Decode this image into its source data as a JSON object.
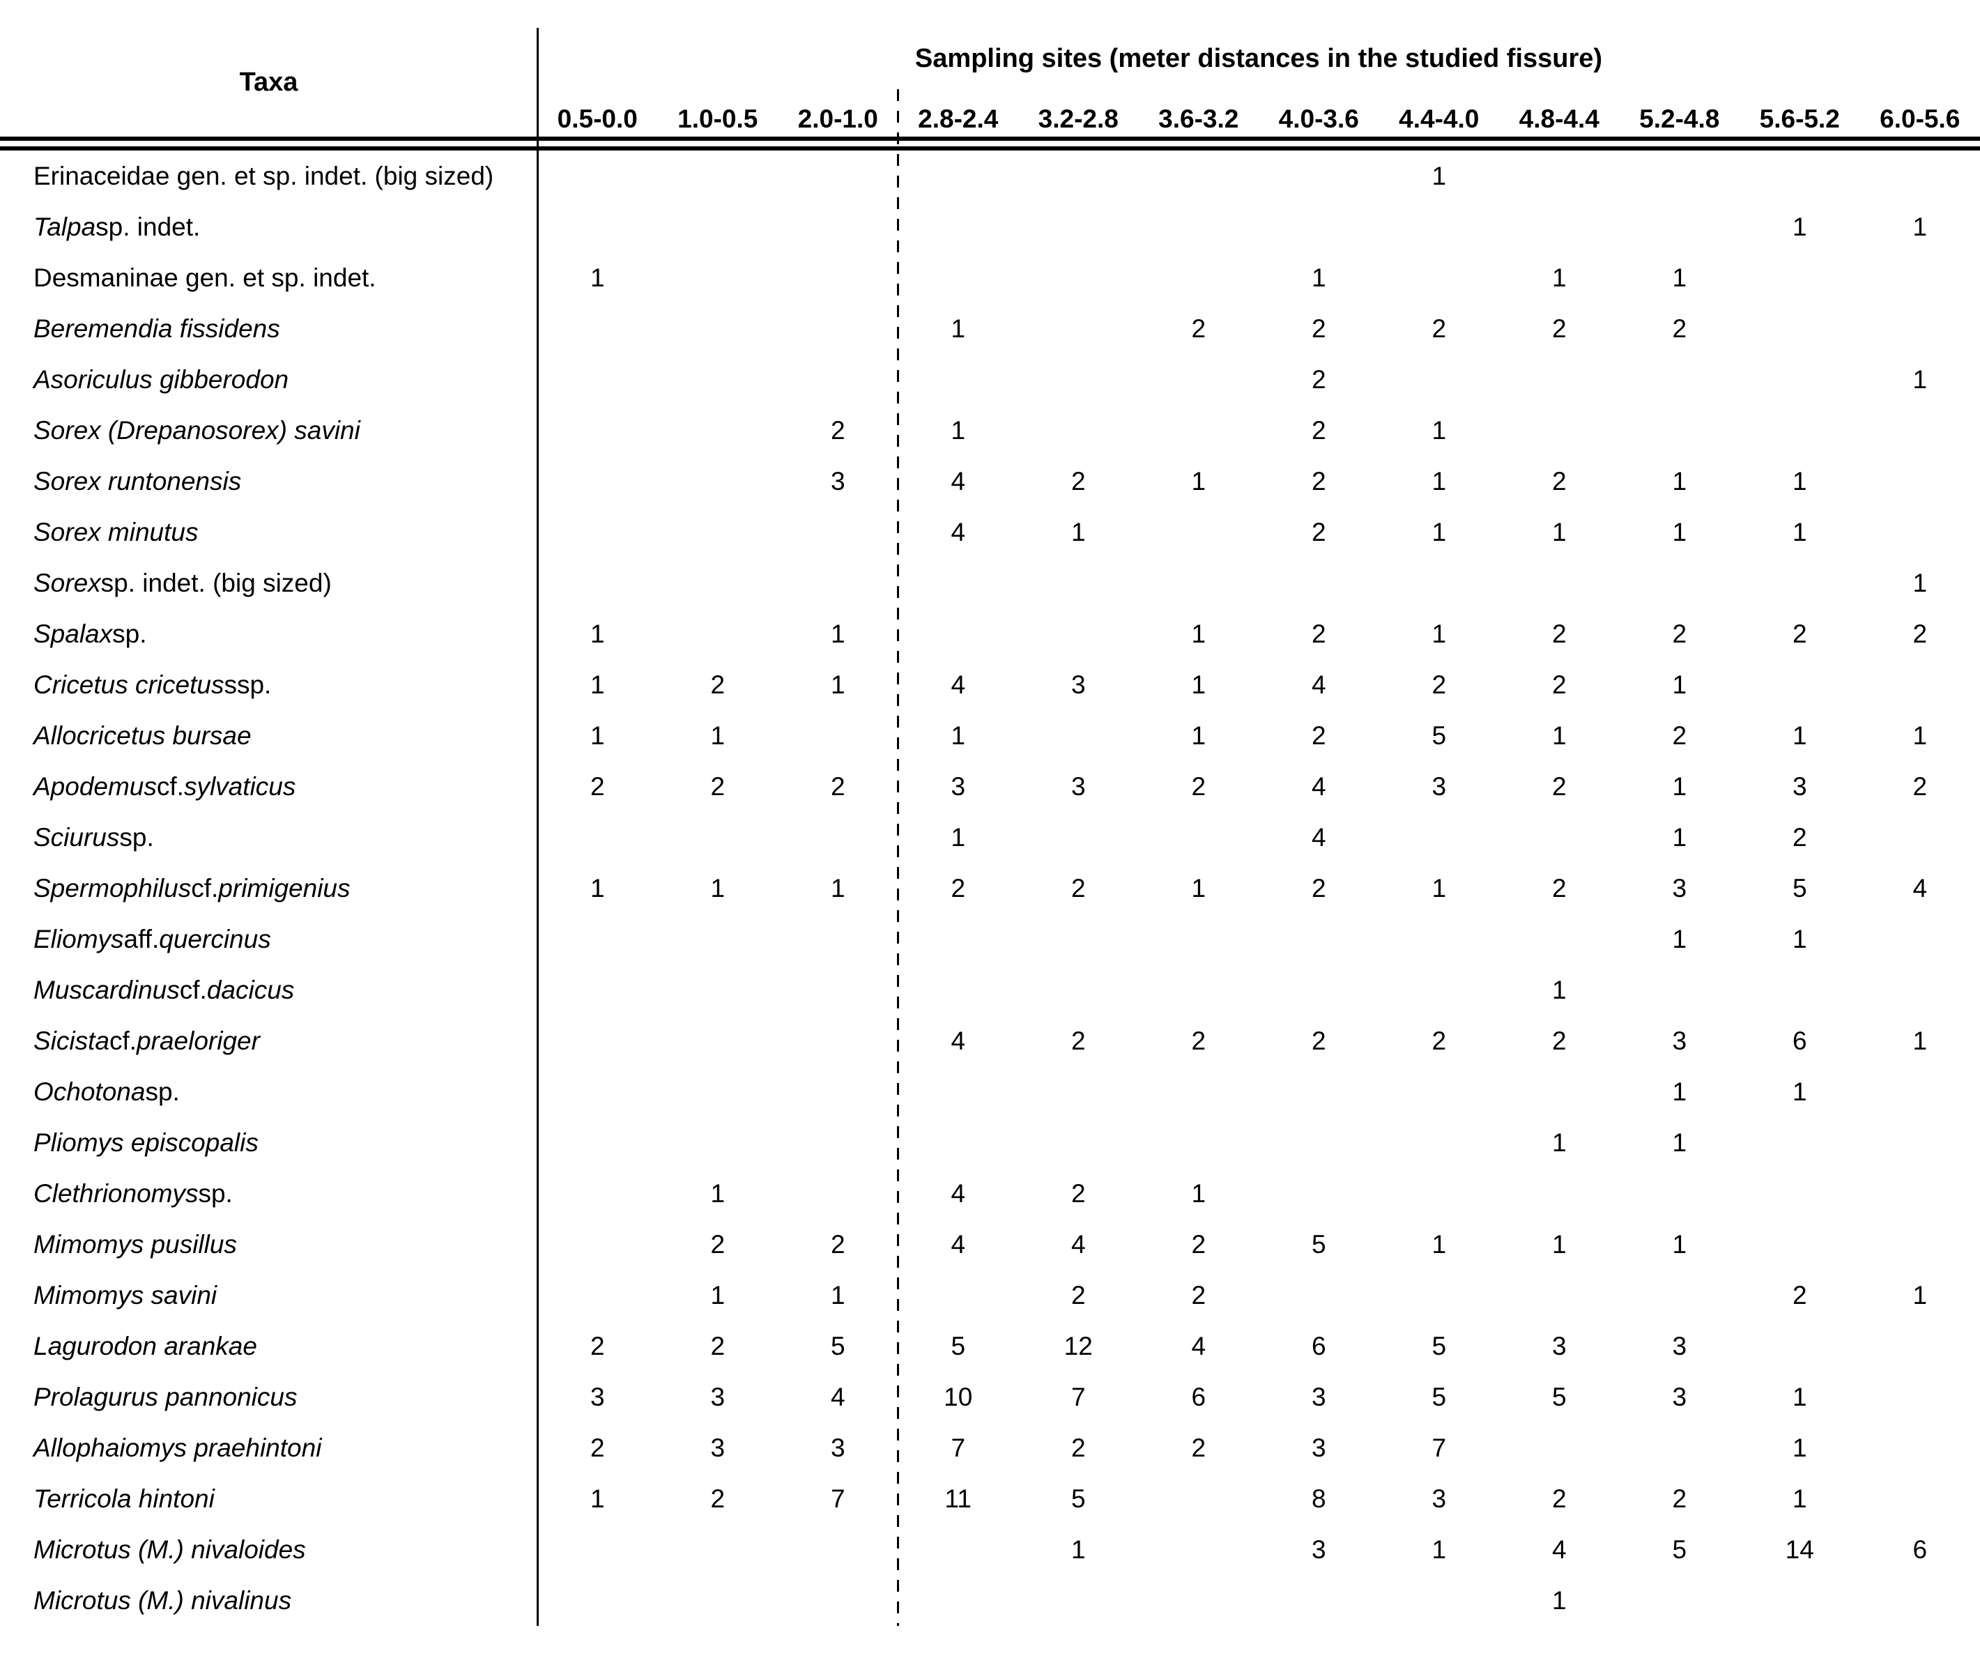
{
  "header": {
    "taxa_label": "Taxa",
    "sites_label": "Sampling sites (meter distances in the studied fissure)",
    "columns": [
      "0.5-0.0",
      "1.0-0.5",
      "2.0-1.0",
      "2.8-2.4",
      "3.2-2.8",
      "3.6-3.2",
      "4.0-3.6",
      "4.4-4.0",
      "4.8-4.4",
      "5.2-4.8",
      "5.6-5.2",
      "6.0-5.6"
    ],
    "dashed_separator_after_column": "2.0-1.0",
    "dashed_after_index": 3
  },
  "colors": {
    "text": "#000000",
    "background": "#ffffff",
    "lines": "#000000"
  },
  "rows": [
    {
      "name_parts": [
        {
          "t": "Erinaceidae gen. et sp. indet. (big sized)",
          "i": false
        }
      ],
      "values": [
        "",
        "",
        "",
        "",
        "",
        "",
        "",
        "1",
        "",
        "",
        "",
        ""
      ]
    },
    {
      "name_parts": [
        {
          "t": "Talpa",
          "i": true
        },
        {
          "t": " sp. indet.",
          "i": false
        }
      ],
      "values": [
        "",
        "",
        "",
        "",
        "",
        "",
        "",
        "",
        "",
        "",
        "1",
        "1"
      ]
    },
    {
      "name_parts": [
        {
          "t": "Desmaninae gen. et sp. indet.",
          "i": false
        }
      ],
      "values": [
        "1",
        "",
        "",
        "",
        "",
        "",
        "1",
        "",
        "1",
        "1",
        "",
        ""
      ]
    },
    {
      "name_parts": [
        {
          "t": "Beremendia fissidens",
          "i": true
        }
      ],
      "values": [
        "",
        "",
        "",
        "1",
        "",
        "2",
        "2",
        "2",
        "2",
        "2",
        "",
        ""
      ]
    },
    {
      "name_parts": [
        {
          "t": "Asoriculus gibberodon",
          "i": true
        }
      ],
      "values": [
        "",
        "",
        "",
        "",
        "",
        "",
        "2",
        "",
        "",
        "",
        "",
        "1"
      ]
    },
    {
      "name_parts": [
        {
          "t": "Sorex (Drepanosorex) savini",
          "i": true
        }
      ],
      "values": [
        "",
        "",
        "2",
        "1",
        "",
        "",
        "2",
        "1",
        "",
        "",
        "",
        ""
      ]
    },
    {
      "name_parts": [
        {
          "t": "Sorex runtonensis",
          "i": true
        }
      ],
      "values": [
        "",
        "",
        "3",
        "4",
        "2",
        "1",
        "2",
        "1",
        "2",
        "1",
        "1",
        ""
      ]
    },
    {
      "name_parts": [
        {
          "t": "Sorex minutus",
          "i": true
        }
      ],
      "values": [
        "",
        "",
        "",
        "4",
        "1",
        "",
        "2",
        "1",
        "1",
        "1",
        "1",
        ""
      ]
    },
    {
      "name_parts": [
        {
          "t": "Sorex",
          "i": true
        },
        {
          "t": " sp. indet. (big sized)",
          "i": false
        }
      ],
      "values": [
        "",
        "",
        "",
        "",
        "",
        "",
        "",
        "",
        "",
        "",
        "",
        "1"
      ]
    },
    {
      "name_parts": [
        {
          "t": "Spalax",
          "i": true
        },
        {
          "t": " sp.",
          "i": false
        }
      ],
      "values": [
        "1",
        "",
        "1",
        "",
        "",
        "1",
        "2",
        "1",
        "2",
        "2",
        "2",
        "2"
      ]
    },
    {
      "name_parts": [
        {
          "t": "Cricetus cricetus",
          "i": true
        },
        {
          "t": " ssp.",
          "i": false
        }
      ],
      "values": [
        "1",
        "2",
        "1",
        "4",
        "3",
        "1",
        "4",
        "2",
        "2",
        "1",
        "",
        ""
      ]
    },
    {
      "name_parts": [
        {
          "t": "Allocricetus bursae",
          "i": true
        }
      ],
      "values": [
        "1",
        "1",
        "",
        "1",
        "",
        "1",
        "2",
        "5",
        "1",
        "2",
        "1",
        "1"
      ]
    },
    {
      "name_parts": [
        {
          "t": "Apodemus",
          "i": true
        },
        {
          "t": " cf. ",
          "i": false
        },
        {
          "t": "sylvaticus",
          "i": true
        }
      ],
      "values": [
        "2",
        "2",
        "2",
        "3",
        "3",
        "2",
        "4",
        "3",
        "2",
        "1",
        "3",
        "2"
      ]
    },
    {
      "name_parts": [
        {
          "t": "Sciurus",
          "i": true
        },
        {
          "t": " sp.",
          "i": false
        }
      ],
      "values": [
        "",
        "",
        "",
        "1",
        "",
        "",
        "4",
        "",
        "",
        "1",
        "2",
        ""
      ]
    },
    {
      "name_parts": [
        {
          "t": "Spermophilus",
          "i": true
        },
        {
          "t": " cf. ",
          "i": false
        },
        {
          "t": "primigenius",
          "i": true
        }
      ],
      "values": [
        "1",
        "1",
        "1",
        "2",
        "2",
        "1",
        "2",
        "1",
        "2",
        "3",
        "5",
        "4"
      ]
    },
    {
      "name_parts": [
        {
          "t": "Eliomys",
          "i": true
        },
        {
          "t": " aff. ",
          "i": false
        },
        {
          "t": "quercinus",
          "i": true
        }
      ],
      "values": [
        "",
        "",
        "",
        "",
        "",
        "",
        "",
        "",
        "",
        "1",
        "1",
        ""
      ]
    },
    {
      "name_parts": [
        {
          "t": "Muscardinus",
          "i": true
        },
        {
          "t": " cf. ",
          "i": false
        },
        {
          "t": "dacicus",
          "i": true
        }
      ],
      "values": [
        "",
        "",
        "",
        "",
        "",
        "",
        "",
        "",
        "1",
        "",
        "",
        ""
      ]
    },
    {
      "name_parts": [
        {
          "t": "Sicista",
          "i": true
        },
        {
          "t": " cf. ",
          "i": false
        },
        {
          "t": "praeloriger",
          "i": true
        }
      ],
      "values": [
        "",
        "",
        "",
        "4",
        "2",
        "2",
        "2",
        "2",
        "2",
        "3",
        "6",
        "1"
      ]
    },
    {
      "name_parts": [
        {
          "t": "Ochotona",
          "i": true
        },
        {
          "t": " sp.",
          "i": false
        }
      ],
      "values": [
        "",
        "",
        "",
        "",
        "",
        "",
        "",
        "",
        "",
        "1",
        "1",
        ""
      ]
    },
    {
      "name_parts": [
        {
          "t": "Pliomys episcopalis",
          "i": true
        }
      ],
      "values": [
        "",
        "",
        "",
        "",
        "",
        "",
        "",
        "",
        "1",
        "1",
        "",
        ""
      ]
    },
    {
      "name_parts": [
        {
          "t": "Clethrionomys",
          "i": true
        },
        {
          "t": " sp.",
          "i": false
        }
      ],
      "values": [
        "",
        "1",
        "",
        "4",
        "2",
        "1",
        "",
        "",
        "",
        "",
        "",
        ""
      ]
    },
    {
      "name_parts": [
        {
          "t": "Mimomys pusillus",
          "i": true
        }
      ],
      "values": [
        "",
        "2",
        "2",
        "4",
        "4",
        "2",
        "5",
        "1",
        "1",
        "1",
        "",
        ""
      ]
    },
    {
      "name_parts": [
        {
          "t": "Mimomys savini",
          "i": true
        }
      ],
      "values": [
        "",
        "1",
        "1",
        "",
        "2",
        "2",
        "",
        "",
        "",
        "",
        "2",
        "1"
      ]
    },
    {
      "name_parts": [
        {
          "t": "Lagurodon arankae",
          "i": true
        }
      ],
      "values": [
        "2",
        "2",
        "5",
        "5",
        "12",
        "4",
        "6",
        "5",
        "3",
        "3",
        "",
        ""
      ]
    },
    {
      "name_parts": [
        {
          "t": "Prolagurus pannonicus",
          "i": true
        }
      ],
      "values": [
        "3",
        "3",
        "4",
        "10",
        "7",
        "6",
        "3",
        "5",
        "5",
        "3",
        "1",
        ""
      ]
    },
    {
      "name_parts": [
        {
          "t": "Allophaiomys praehintoni",
          "i": true
        }
      ],
      "values": [
        "2",
        "3",
        "3",
        "7",
        "2",
        "2",
        "3",
        "7",
        "",
        "",
        "1",
        ""
      ]
    },
    {
      "name_parts": [
        {
          "t": "Terricola hintoni",
          "i": true
        }
      ],
      "values": [
        "1",
        "2",
        "7",
        "11",
        "5",
        "",
        "8",
        "3",
        "2",
        "2",
        "1",
        ""
      ]
    },
    {
      "name_parts": [
        {
          "t": "Microtus (M.) nivaloides",
          "i": true
        }
      ],
      "values": [
        "",
        "",
        "",
        "",
        "1",
        "",
        "3",
        "1",
        "4",
        "5",
        "14",
        "6"
      ]
    },
    {
      "name_parts": [
        {
          "t": "Microtus (M.) nivalinus",
          "i": true
        }
      ],
      "values": [
        "",
        "",
        "",
        "",
        "",
        "",
        "",
        "",
        "1",
        "",
        "",
        ""
      ]
    }
  ]
}
